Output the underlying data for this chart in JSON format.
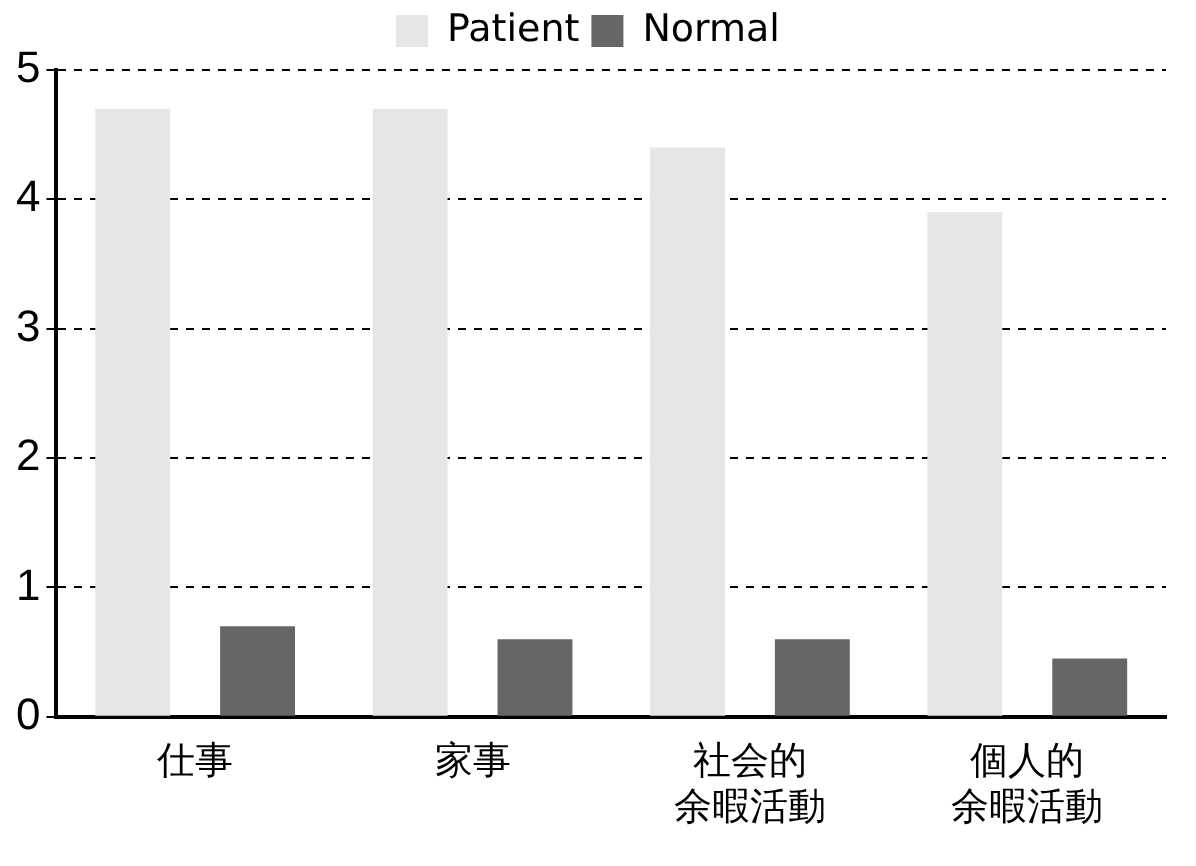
{
  "chart_data": {
    "type": "bar",
    "categories": [
      "仕事",
      "家事",
      "社会的余暇活動",
      "個人的余暇活動"
    ],
    "series": [
      {
        "name": "Patient",
        "color": "#e6e6e6",
        "values": [
          4.7,
          4.7,
          4.4,
          3.9
        ]
      },
      {
        "name": "Normal",
        "color": "#666666",
        "values": [
          0.7,
          0.6,
          0.6,
          0.45
        ]
      }
    ],
    "ylim": [
      0,
      5
    ],
    "yticks": [
      0,
      1,
      2,
      3,
      4,
      5
    ],
    "grid": "y",
    "legend": "top"
  }
}
